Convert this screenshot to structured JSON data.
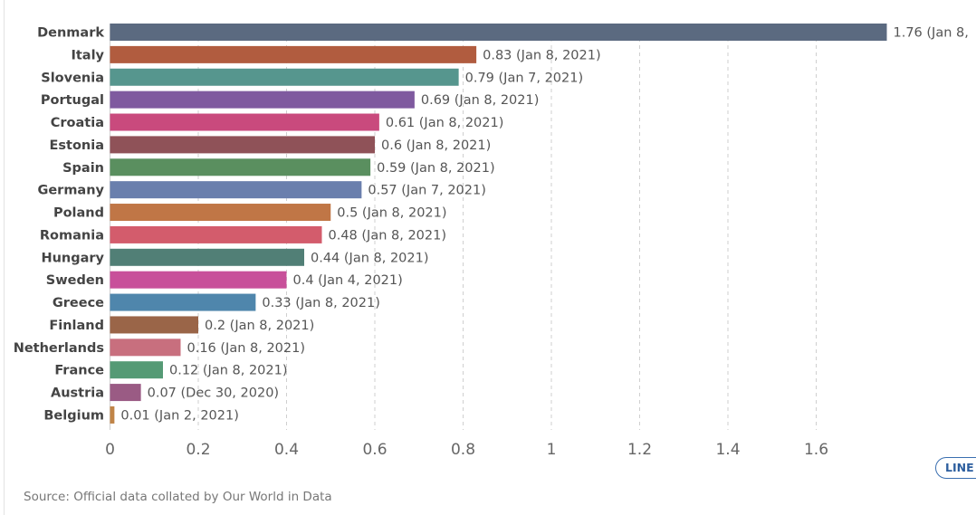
{
  "chart_data": {
    "type": "bar",
    "orientation": "horizontal",
    "categories": [
      "Denmark",
      "Italy",
      "Slovenia",
      "Portugal",
      "Croatia",
      "Estonia",
      "Spain",
      "Germany",
      "Poland",
      "Romania",
      "Hungary",
      "Sweden",
      "Greece",
      "Finland",
      "Netherlands",
      "France",
      "Austria",
      "Belgium"
    ],
    "values": [
      1.76,
      0.83,
      0.79,
      0.69,
      0.61,
      0.6,
      0.59,
      0.57,
      0.5,
      0.48,
      0.44,
      0.4,
      0.33,
      0.2,
      0.16,
      0.12,
      0.07,
      0.01
    ],
    "value_labels": [
      "1.76 (Jan 8,",
      "0.83 (Jan 8, 2021)",
      "0.79 (Jan 7, 2021)",
      "0.69 (Jan 8, 2021)",
      "0.61 (Jan 8, 2021)",
      "0.6 (Jan 8, 2021)",
      "0.59 (Jan 8, 2021)",
      "0.57 (Jan 7, 2021)",
      "0.5 (Jan 8, 2021)",
      "0.48 (Jan 8, 2021)",
      "0.44 (Jan 8, 2021)",
      "0.4 (Jan 4, 2021)",
      "0.33 (Jan 8, 2021)",
      "0.2 (Jan 8, 2021)",
      "0.16 (Jan 8, 2021)",
      "0.12 (Jan 8, 2021)",
      "0.07 (Dec 30, 2020)",
      "0.01 (Jan 2, 2021)"
    ],
    "colors": [
      "#5b6a80",
      "#b15c3f",
      "#56968e",
      "#7f5a9f",
      "#c94a7d",
      "#8f5258",
      "#5a8f5f",
      "#6a7fad",
      "#c07646",
      "#d35c6c",
      "#517f76",
      "#c8509a",
      "#4f86ac",
      "#9a6548",
      "#c86f7e",
      "#559a75",
      "#9a5b84",
      "#c08447"
    ],
    "xticks": [
      "0",
      "0.2",
      "0.4",
      "0.6",
      "0.8",
      "1",
      "1.2",
      "1.4",
      "1.6"
    ],
    "xtick_values": [
      0,
      0.2,
      0.4,
      0.6,
      0.8,
      1,
      1.2,
      1.4,
      1.6
    ],
    "xlim": [
      0,
      1.76
    ],
    "grid": "vertical-dashed",
    "title": "",
    "xlabel": "",
    "ylabel": ""
  },
  "footer": {
    "source": "Source: Official data collated by Our World in Data",
    "line_button": "LINE"
  }
}
